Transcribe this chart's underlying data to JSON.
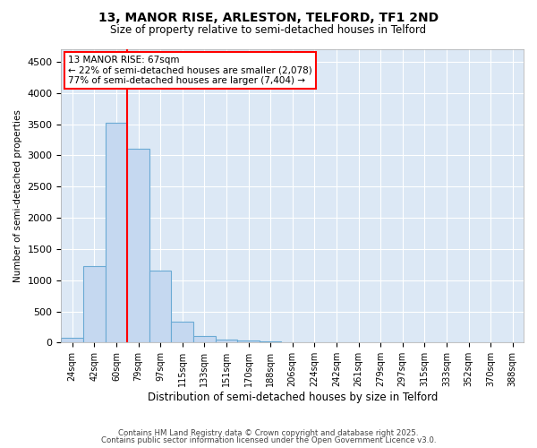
{
  "title1": "13, MANOR RISE, ARLESTON, TELFORD, TF1 2ND",
  "title2": "Size of property relative to semi-detached houses in Telford",
  "xlabel": "Distribution of semi-detached houses by size in Telford",
  "ylabel": "Number of semi-detached properties",
  "categories": [
    "24sqm",
    "42sqm",
    "60sqm",
    "79sqm",
    "97sqm",
    "115sqm",
    "133sqm",
    "151sqm",
    "170sqm",
    "188sqm",
    "206sqm",
    "224sqm",
    "242sqm",
    "261sqm",
    "279sqm",
    "297sqm",
    "315sqm",
    "333sqm",
    "352sqm",
    "370sqm",
    "388sqm"
  ],
  "values": [
    75,
    1220,
    3520,
    3100,
    1150,
    330,
    100,
    55,
    35,
    25,
    0,
    0,
    0,
    0,
    0,
    0,
    0,
    0,
    0,
    0,
    0
  ],
  "bar_color": "#c5d8f0",
  "bar_edge_color": "#6aaad4",
  "vline_x_idx": 2,
  "vline_color": "red",
  "annotation_text": "13 MANOR RISE: 67sqm\n← 22% of semi-detached houses are smaller (2,078)\n77% of semi-detached houses are larger (7,404) →",
  "ylim": [
    0,
    4700
  ],
  "yticks": [
    0,
    500,
    1000,
    1500,
    2000,
    2500,
    3000,
    3500,
    4000,
    4500
  ],
  "footer1": "Contains HM Land Registry data © Crown copyright and database right 2025.",
  "footer2": "Contains public sector information licensed under the Open Government Licence v3.0.",
  "bg_color": "#ffffff",
  "plot_bg_color": "#dce8f5",
  "grid_color": "#ffffff"
}
